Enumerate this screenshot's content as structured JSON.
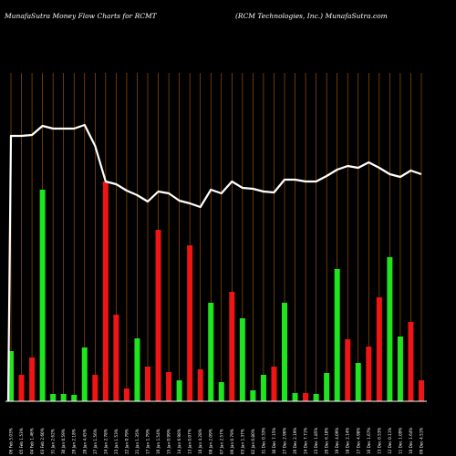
{
  "header": {
    "left": "MunafaSutra  Money Flow  Charts for RCMT",
    "right": "(RCM Technologies,  Inc.) MunafaSutra.com"
  },
  "chart_data": {
    "type": "bar",
    "title": "MunafaSutra  Money Flow  Charts for RCMT",
    "subtitle": "(RCM Technologies,  Inc.) MunafaSutra.com",
    "categories": [
      "06 Feb 5.03%",
      "05 Feb 1.53%",
      "04 Feb 1.46%",
      "03 Feb 2.60%",
      "31 Jan 2.62%",
      "30 Jan 0.59%",
      "29 Jan 2.18%",
      "28 Jan 4.45%",
      "27 Jan 1.56%",
      "24 Jan 2.78%",
      "23 Jan 1.53%",
      "22 Jan 0.79%",
      "21 Jan 1.35%",
      "17 Jan 1.79%",
      "16 Jan 1.54%",
      "15 Jan 0.99%",
      "14 Jan 6.98%",
      "13 Jan 0.07%",
      "10 Jan 4.28%",
      "08 Jan 2.09%",
      "07 Jan 2.57%",
      "06 Jan 0.79%",
      "03 Jan 1.37%",
      "02 Jan 0.80%",
      "31 Dec 0.33%",
      "30 Dec 7.15%",
      "27 Dec 2.96%",
      "26 Dec 2.19%",
      "24 Dec 7.71%",
      "23 Dec 1.85%",
      "20 Dec 6.18%",
      "19 Dec 4.09%",
      "18 Dec 2.14%",
      "17 Dec 4.98%",
      "16 Dec 1.67%",
      "13 Dec 0.53%",
      "12 Dec 0.11%",
      "11 Dec 1.09%",
      "10 Dec 1.64%",
      "09 Dec 4.51%"
    ],
    "series": [
      {
        "flow": [
          1,
          -1,
          -1,
          1,
          1,
          1,
          1,
          1,
          -1,
          -1,
          -1,
          -1,
          1,
          -1,
          -1,
          -1,
          1,
          -1,
          -1,
          1,
          1,
          -1,
          1,
          1,
          1,
          -1,
          1,
          1,
          -1,
          1,
          1,
          1,
          -1,
          1,
          -1,
          -1,
          1,
          1,
          -1,
          -1
        ],
        "values": [
          55,
          29,
          48,
          232,
          8,
          8,
          7,
          59,
          29,
          241,
          95,
          14,
          69,
          38,
          188,
          32,
          23,
          171,
          35,
          108,
          21,
          120,
          91,
          12,
          29,
          38,
          108,
          9,
          9,
          8,
          31,
          145,
          68,
          42,
          60,
          114,
          158,
          71,
          87,
          23
        ]
      },
      {
        "values": [
          291,
          291,
          292,
          302,
          299,
          299,
          299,
          303,
          280,
          241,
          238,
          231,
          226,
          219,
          230,
          228,
          220,
          217,
          213,
          232,
          228,
          241,
          234,
          233,
          230,
          229,
          243,
          243,
          241,
          241,
          247,
          254,
          258,
          256,
          262,
          256,
          249,
          246,
          253,
          249
        ]
      }
    ],
    "ylim": [
      0,
      360
    ],
    "grid": true,
    "colors": {
      "inflow": "#1ee51e",
      "outflow": "#f01414",
      "line": "#ffffff",
      "grid": "#b06000",
      "background": "#000000"
    }
  }
}
